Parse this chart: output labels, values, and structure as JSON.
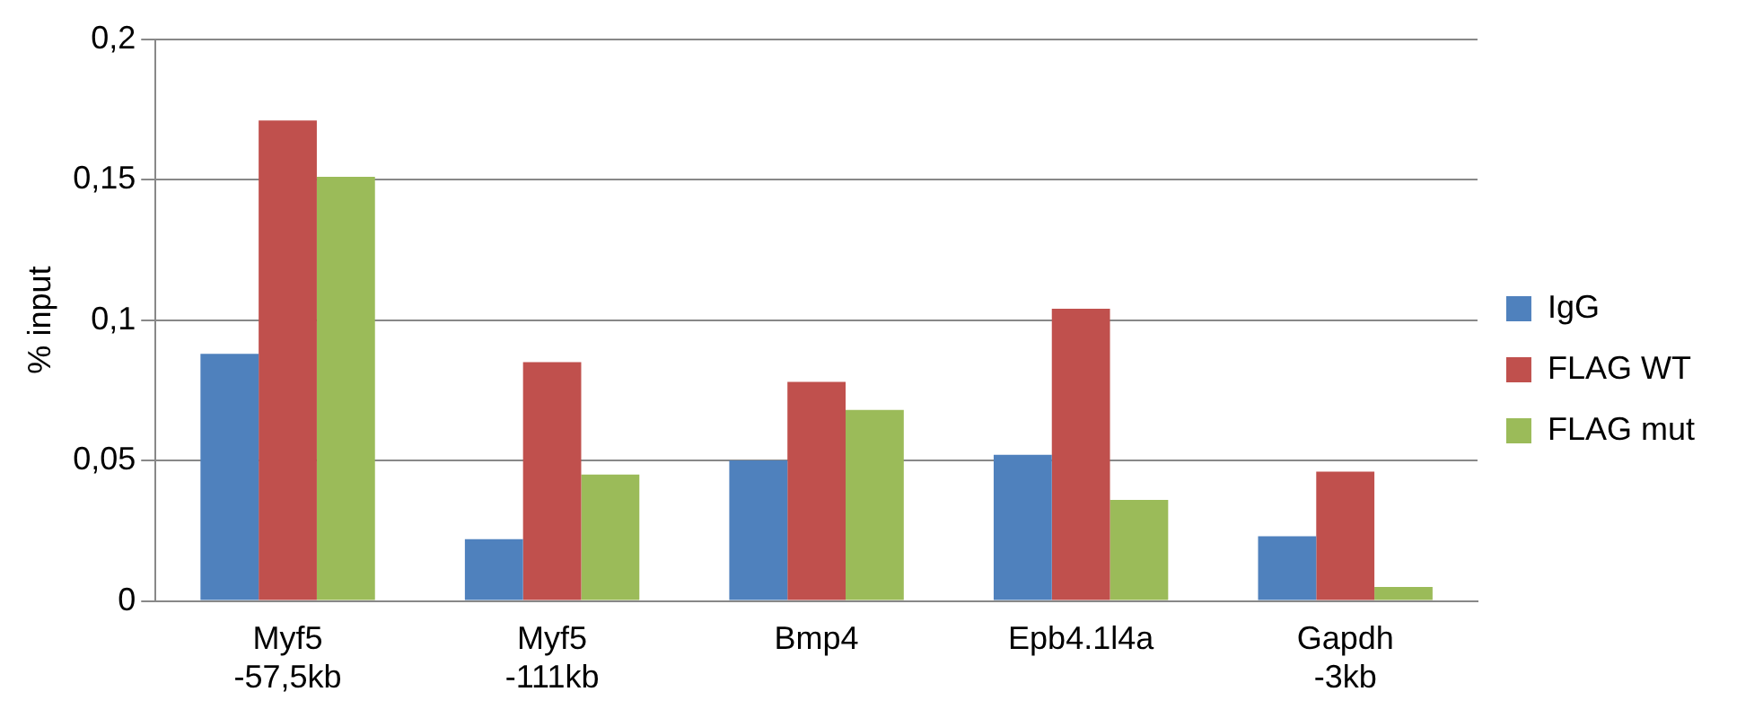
{
  "chart_data": {
    "type": "bar",
    "ylabel": "% input",
    "categories": [
      "Myf5 -57,5kb",
      "Myf5 -111kb",
      "Bmp4",
      "Epb4.1l4a",
      "Gapdh -3kb"
    ],
    "series": [
      {
        "name": "IgG",
        "color": "#4f81bd",
        "values": [
          0.088,
          0.022,
          0.05,
          0.052,
          0.023
        ]
      },
      {
        "name": "FLAG WT",
        "color": "#c0504d",
        "values": [
          0.171,
          0.085,
          0.078,
          0.104,
          0.046
        ]
      },
      {
        "name": "FLAG mut",
        "color": "#9bbb59",
        "values": [
          0.151,
          0.045,
          0.068,
          0.036,
          0.005
        ]
      }
    ],
    "ylim": [
      0,
      0.2
    ],
    "yticks": [
      0,
      {
        "value": 0.05,
        "label": "0,05"
      },
      {
        "value": 0.1,
        "label": "0,1"
      },
      {
        "value": 0.15,
        "label": "0,15"
      },
      {
        "value": 0.2,
        "label": "0,2"
      }
    ],
    "grid": "y",
    "legend": "right"
  }
}
